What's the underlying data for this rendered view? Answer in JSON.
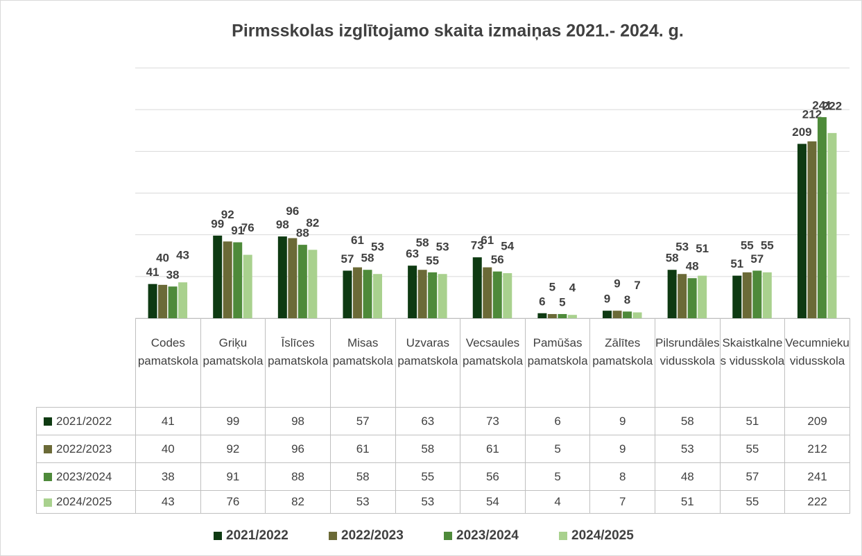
{
  "chart_data": {
    "type": "bar",
    "title": "Pirmsskolas izglītojamo skaita izmaiņas 2021.- 2024. g.",
    "categories": [
      "Codes pamatskola",
      "Griķu pamatskola",
      "Īslīces pamatskola",
      "Misas pamatskola",
      "Uzvaras pamatskola",
      "Vecsaules pamatskola",
      "Pamūšas pamatskola",
      "Zālītes pamatskola",
      "Pilsrundāles vidusskola",
      "Skaistkalnes vidusskola",
      "Vecumnieku vidusskola"
    ],
    "series": [
      {
        "name": "2021/2022",
        "color": "#0e3a12",
        "values": [
          41,
          99,
          98,
          57,
          63,
          73,
          6,
          9,
          58,
          51,
          209
        ]
      },
      {
        "name": "2022/2023",
        "color": "#6b6a37",
        "values": [
          40,
          92,
          96,
          61,
          58,
          61,
          5,
          9,
          53,
          55,
          212
        ]
      },
      {
        "name": "2023/2024",
        "color": "#4e8a3a",
        "values": [
          38,
          91,
          88,
          58,
          55,
          56,
          5,
          8,
          48,
          57,
          241
        ]
      },
      {
        "name": "2024/2025",
        "color": "#a9d18e",
        "values": [
          43,
          76,
          82,
          53,
          53,
          54,
          4,
          7,
          51,
          55,
          222
        ]
      }
    ],
    "ylim": [
      0,
      300
    ],
    "yticks": [
      0,
      50,
      100,
      150,
      200,
      250,
      300
    ],
    "grid": true,
    "legend": "bottom"
  }
}
